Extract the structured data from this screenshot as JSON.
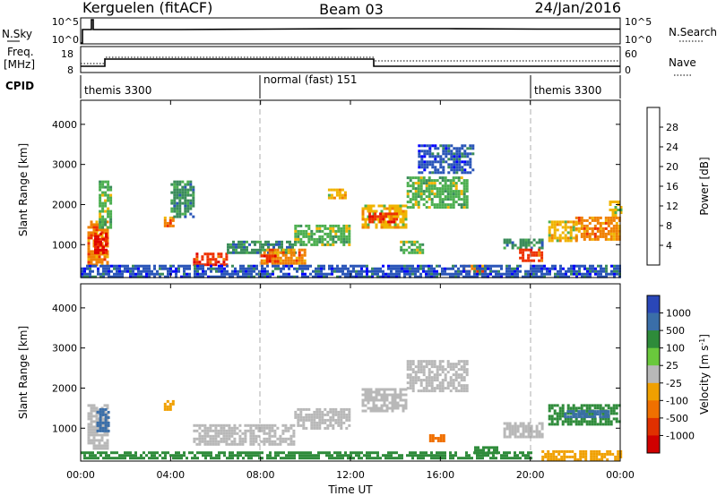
{
  "header": {
    "station": "Kerguelen (fitACF)",
    "beam": "Beam 03",
    "date": "24/Jan/2016"
  },
  "nsky_panel": {
    "left_label": "N.Sky",
    "right_label": "N.Search",
    "left_ticks": [
      "10^5",
      "10^0"
    ],
    "right_ticks": [
      "10^5",
      "10^0"
    ]
  },
  "freq_panel": {
    "left_label_line1": "Freq.",
    "left_label_line2": "[MHz]",
    "right_label": "Nave",
    "left_ticks": [
      "18",
      "8"
    ],
    "right_ticks": [
      "60",
      "0"
    ]
  },
  "cpid_panel": {
    "label": "CPID",
    "segments": [
      {
        "name": "themis 3300",
        "start_h": 0,
        "end_h": 8
      },
      {
        "name": "normal (fast) 151",
        "start_h": 8,
        "end_h": 20
      },
      {
        "name": "themis 3300",
        "start_h": 20,
        "end_h": 24
      }
    ]
  },
  "colors": {
    "power_scale": [
      "#0000ff",
      "#2a55b8",
      "#3a8c5a",
      "#4caf50",
      "#f0b400",
      "#f08000",
      "#ee3000",
      "#e00000"
    ],
    "velocity_scale": [
      "#2a47b8",
      "#3a6ea8",
      "#2e8b3a",
      "#6ac83c",
      "#b8b8b8",
      "#f0a000",
      "#f07000",
      "#e03000",
      "#d00000"
    ]
  },
  "time_axis": {
    "label": "Time UT",
    "ticks": [
      "00:00",
      "04:00",
      "08:00",
      "12:00",
      "16:00",
      "20:00",
      "00:00"
    ]
  },
  "chart_data": [
    {
      "type": "heatmap",
      "name": "power",
      "ylabel": "Slant Range [km]",
      "ylim": [
        180,
        4600
      ],
      "yticks": [
        1000,
        2000,
        3000,
        4000
      ],
      "xlim_hours": [
        0,
        24
      ],
      "colorbar": {
        "label": "Power [dB]",
        "ticks": [
          "4",
          "8",
          "12",
          "16",
          "20",
          "24",
          "28"
        ],
        "range": [
          0,
          32
        ]
      },
      "regions": [
        {
          "t0": 0.3,
          "t1": 1.2,
          "r0": 500,
          "r1": 1600,
          "v": 22
        },
        {
          "t0": 0.6,
          "t1": 1.1,
          "r0": 800,
          "r1": 1300,
          "v": 28
        },
        {
          "t0": 0.8,
          "t1": 1.3,
          "r0": 1400,
          "r1": 2600,
          "v": 12
        },
        {
          "t0": 3.7,
          "t1": 4.1,
          "r0": 1450,
          "r1": 1700,
          "v": 20
        },
        {
          "t0": 4.0,
          "t1": 5.0,
          "r0": 1700,
          "r1": 2600,
          "v": 8
        },
        {
          "t0": 5.0,
          "t1": 6.5,
          "r0": 500,
          "r1": 800,
          "v": 24
        },
        {
          "t0": 6.5,
          "t1": 9.5,
          "r0": 800,
          "r1": 1100,
          "v": 10
        },
        {
          "t0": 8.0,
          "t1": 10.0,
          "r0": 500,
          "r1": 900,
          "v": 20
        },
        {
          "t0": 8.0,
          "t1": 8.8,
          "r0": 550,
          "r1": 750,
          "v": 26
        },
        {
          "t0": 9.5,
          "t1": 12.0,
          "r0": 1000,
          "r1": 1500,
          "v": 14
        },
        {
          "t0": 11.0,
          "t1": 11.8,
          "r0": 2150,
          "r1": 2400,
          "v": 18
        },
        {
          "t0": 12.5,
          "t1": 14.5,
          "r0": 1400,
          "r1": 2000,
          "v": 18
        },
        {
          "t0": 12.8,
          "t1": 14.0,
          "r0": 1550,
          "r1": 1800,
          "v": 24
        },
        {
          "t0": 14.5,
          "t1": 17.2,
          "r0": 1900,
          "r1": 2700,
          "v": 12
        },
        {
          "t0": 15.0,
          "t1": 17.5,
          "r0": 2800,
          "r1": 3500,
          "v": 6
        },
        {
          "t0": 14.2,
          "t1": 15.2,
          "r0": 800,
          "r1": 1100,
          "v": 14
        },
        {
          "t0": 17.0,
          "t1": 18.0,
          "r0": 350,
          "r1": 500,
          "v": 22
        },
        {
          "t0": 18.8,
          "t1": 20.5,
          "r0": 900,
          "r1": 1150,
          "v": 10
        },
        {
          "t0": 19.5,
          "t1": 20.5,
          "r0": 600,
          "r1": 900,
          "v": 24
        },
        {
          "t0": 20.8,
          "t1": 22.0,
          "r0": 1100,
          "r1": 1600,
          "v": 18
        },
        {
          "t0": 22.0,
          "t1": 24.0,
          "r0": 1150,
          "r1": 1700,
          "v": 22
        },
        {
          "t0": 23.5,
          "t1": 24.0,
          "r0": 1700,
          "r1": 2100,
          "v": 16
        },
        {
          "t0": 0.0,
          "t1": 24.0,
          "r0": 220,
          "r1": 500,
          "v": 6
        }
      ]
    },
    {
      "type": "heatmap",
      "name": "velocity",
      "ylabel": "Slant Range [km]",
      "ylim": [
        180,
        4600
      ],
      "yticks": [
        1000,
        2000,
        3000,
        4000
      ],
      "xlim_hours": [
        0,
        24
      ],
      "colorbar": {
        "label": "Velocity [m s",
        "label_sup": "-1",
        "label_end": "]",
        "ticks": [
          "1000",
          "500",
          "100",
          "25",
          "-25",
          "-100",
          "-500",
          "-1000"
        ]
      },
      "regions": [
        {
          "t0": 0.3,
          "t1": 1.2,
          "r0": 500,
          "r1": 1600,
          "v": "-25"
        },
        {
          "t0": 0.7,
          "t1": 1.2,
          "r0": 900,
          "r1": 1500,
          "v": "500"
        },
        {
          "t0": 3.7,
          "t1": 4.1,
          "r0": 1450,
          "r1": 1700,
          "v": "-100"
        },
        {
          "t0": 5.0,
          "t1": 9.5,
          "r0": 600,
          "r1": 1100,
          "v": "-25"
        },
        {
          "t0": 9.5,
          "t1": 12.0,
          "r0": 1000,
          "r1": 1500,
          "v": "-25"
        },
        {
          "t0": 12.5,
          "t1": 14.5,
          "r0": 1400,
          "r1": 2000,
          "v": "-25"
        },
        {
          "t0": 14.5,
          "t1": 17.2,
          "r0": 1900,
          "r1": 2700,
          "v": "-25"
        },
        {
          "t0": 15.5,
          "t1": 16.2,
          "r0": 650,
          "r1": 850,
          "v": "-500"
        },
        {
          "t0": 17.5,
          "t1": 18.5,
          "r0": 350,
          "r1": 550,
          "v": "100"
        },
        {
          "t0": 18.8,
          "t1": 20.5,
          "r0": 800,
          "r1": 1150,
          "v": "-25"
        },
        {
          "t0": 20.8,
          "t1": 24.0,
          "r0": 1100,
          "r1": 1600,
          "v": "100"
        },
        {
          "t0": 21.5,
          "t1": 23.5,
          "r0": 1250,
          "r1": 1450,
          "v": "500"
        },
        {
          "t0": 20.5,
          "t1": 24.0,
          "r0": 220,
          "r1": 450,
          "v": "-100"
        },
        {
          "t0": 0.0,
          "t1": 20.0,
          "r0": 220,
          "r1": 420,
          "v": "100"
        }
      ]
    }
  ]
}
